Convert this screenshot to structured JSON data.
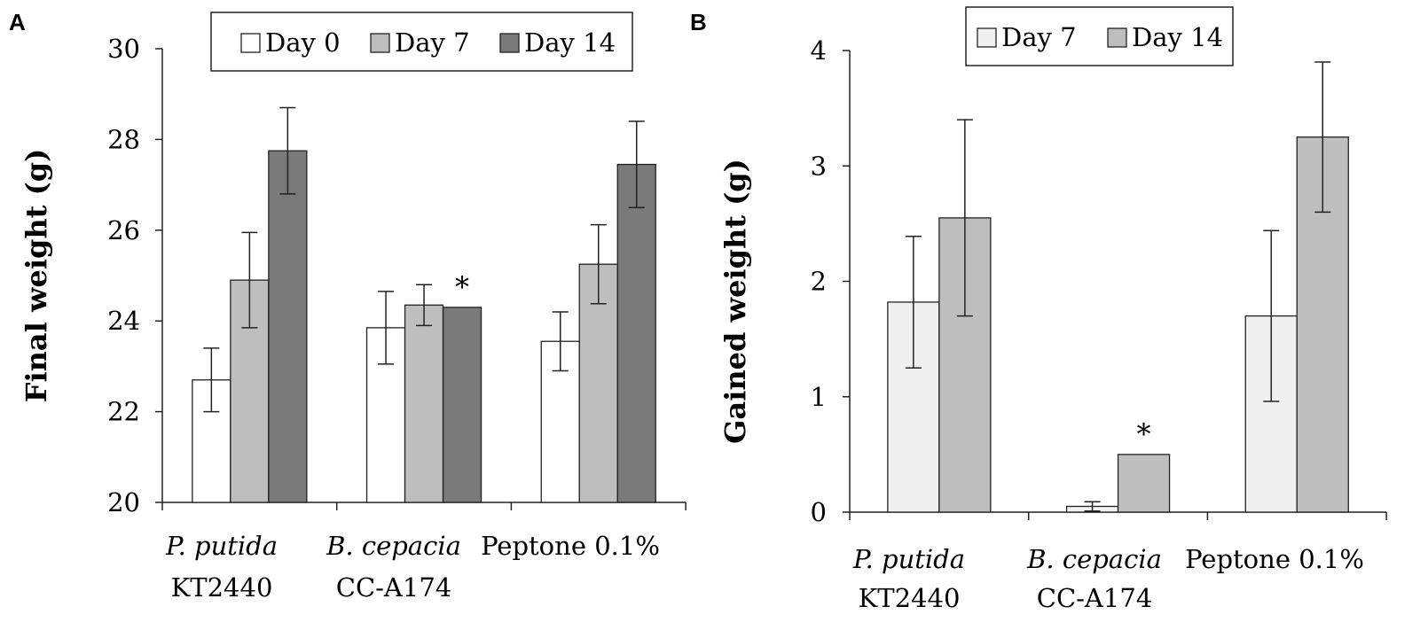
{
  "chart_data": [
    {
      "panel": "A",
      "type": "bar",
      "ylabel": "Final weight (g)",
      "xlabel": "",
      "ylim": [
        20,
        30
      ],
      "yticks": [
        "20",
        "22",
        "24",
        "26",
        "28",
        "30"
      ],
      "categories": [
        {
          "line1": "P. putida",
          "line2": "KT2440",
          "italic": true
        },
        {
          "line1": "B. cepacia",
          "line2": "CC-A174",
          "italic": true
        },
        {
          "line1": "Peptone 0.1%",
          "line2": "",
          "italic": false
        }
      ],
      "legend": [
        "Day 0",
        "Day 7",
        "Day 14"
      ],
      "series": [
        {
          "name": "Day 0",
          "color": "#ffffff",
          "values": [
            22.7,
            23.85,
            23.55
          ],
          "errors": [
            0.7,
            0.8,
            0.65
          ]
        },
        {
          "name": "Day 7",
          "color": "#bebebe",
          "values": [
            24.9,
            24.35,
            25.25
          ],
          "errors": [
            1.05,
            0.45,
            0.87
          ]
        },
        {
          "name": "Day 14",
          "color": "#7a7a7a",
          "values": [
            27.75,
            24.3,
            27.45
          ],
          "errors": [
            0.95,
            0.0,
            0.95
          ]
        }
      ],
      "annotations": [
        {
          "category": 1,
          "series": 2,
          "text": "*"
        }
      ]
    },
    {
      "panel": "B",
      "type": "bar",
      "ylabel": "Gained weight (g)",
      "xlabel": "",
      "ylim": [
        0,
        4
      ],
      "yticks": [
        "0",
        "1",
        "2",
        "3",
        "4"
      ],
      "categories": [
        {
          "line1": "P. putida",
          "line2": "KT2440",
          "italic": true
        },
        {
          "line1": "B. cepacia",
          "line2": "CC-A174",
          "italic": true
        },
        {
          "line1": "Peptone 0.1%",
          "line2": "",
          "italic": false
        }
      ],
      "legend": [
        "Day 7",
        "Day 14"
      ],
      "series": [
        {
          "name": "Day 7",
          "color": "#f0f0f0",
          "values": [
            1.82,
            0.05,
            1.7
          ],
          "errors": [
            0.57,
            0.04,
            0.74
          ]
        },
        {
          "name": "Day 14",
          "color": "#bebebe",
          "values": [
            2.55,
            0.5,
            3.25
          ],
          "errors": [
            0.85,
            0.0,
            0.65
          ]
        }
      ],
      "annotations": [
        {
          "category": 1,
          "series": 1,
          "text": "*"
        }
      ]
    }
  ]
}
